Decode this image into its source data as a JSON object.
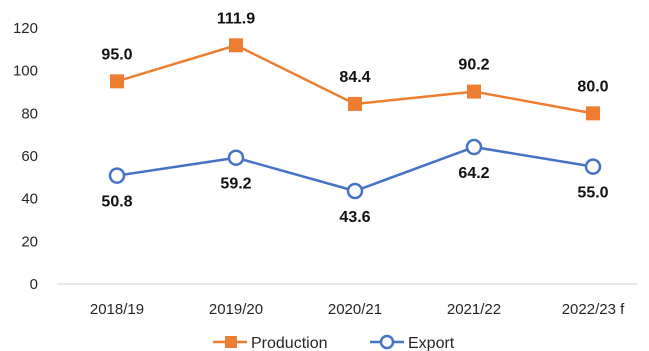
{
  "chart_data": {
    "type": "line",
    "categories": [
      "2018/19",
      "2019/20",
      "2020/21",
      "2021/22",
      "2022/23 f"
    ],
    "series": [
      {
        "name": "Production",
        "values": [
          95.0,
          111.9,
          84.4,
          90.2,
          80.0
        ],
        "color": "#ED7D31",
        "marker": "square",
        "label_position": "above"
      },
      {
        "name": "Export",
        "values": [
          50.8,
          59.2,
          43.6,
          64.2,
          55.0
        ],
        "color": "#4472C4",
        "marker": "circle",
        "label_position": "below"
      }
    ],
    "ylim": [
      0,
      120
    ],
    "yticks": [
      0,
      20,
      40,
      60,
      80,
      100,
      120
    ],
    "grid": false,
    "legend_position": "bottom",
    "title": "",
    "xlabel": "",
    "ylabel": ""
  }
}
